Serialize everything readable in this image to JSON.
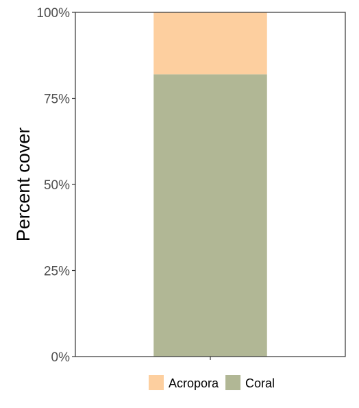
{
  "chart_data": {
    "type": "bar",
    "stacked": true,
    "title": "",
    "xlabel": "",
    "ylabel": "Percent cover",
    "categories": [
      ""
    ],
    "ylim": [
      0,
      100
    ],
    "y_ticks": [
      0,
      25,
      50,
      75,
      100
    ],
    "y_tick_labels": [
      "0%",
      "25%",
      "50%",
      "75%",
      "100%"
    ],
    "grid": false,
    "legend_position": "bottom",
    "series": [
      {
        "name": "Coral",
        "values": [
          82
        ],
        "color": "#b1b795"
      },
      {
        "name": "Acropora",
        "values": [
          18
        ],
        "color": "#fdcf9f"
      }
    ],
    "legend": [
      {
        "name": "Acropora",
        "color": "#fdcf9f"
      },
      {
        "name": "Coral",
        "color": "#b1b795"
      }
    ]
  }
}
